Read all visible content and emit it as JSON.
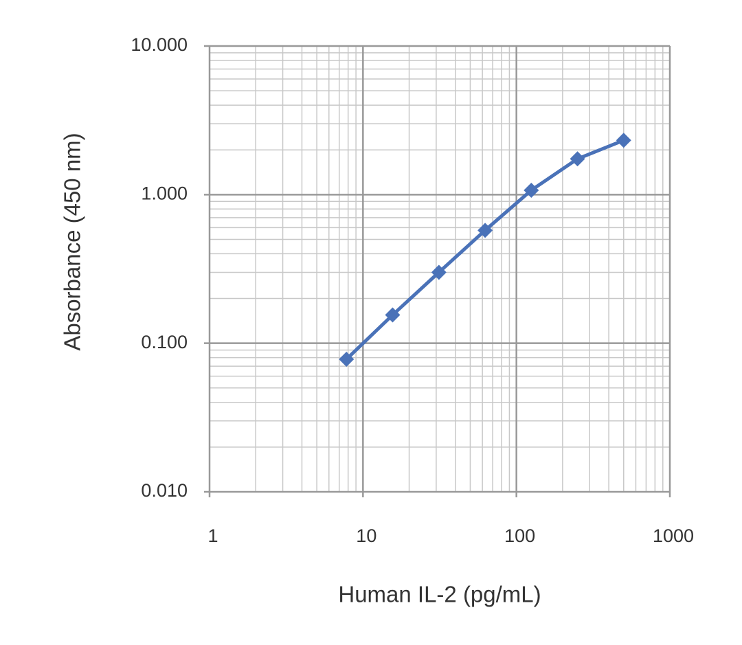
{
  "chart_data": {
    "type": "line",
    "x_label": "Human IL-2 (pg/mL)",
    "y_label": "Absorbance (450 nm)",
    "x": [
      7.8,
      15.6,
      31.25,
      62.5,
      125,
      250,
      500
    ],
    "series": [
      {
        "name": "Absorbance",
        "color": "#4a72b8",
        "values": [
          0.078,
          0.155,
          0.3,
          0.575,
          1.07,
          1.74,
          2.32
        ]
      }
    ],
    "xlim": [
      1,
      1000
    ],
    "xticks": [
      1,
      10,
      100,
      1000
    ],
    "ylim": [
      0.01,
      10
    ],
    "yticks": [
      {
        "value": 0.01,
        "label": "0.010"
      },
      {
        "value": 0.1,
        "label": "0.100"
      },
      {
        "value": 1,
        "label": "1.000"
      },
      {
        "value": 10,
        "label": "10.000"
      }
    ],
    "xscale": "log",
    "yscale": "log",
    "grid": true,
    "minor_grid": true,
    "marker": "diamond"
  }
}
